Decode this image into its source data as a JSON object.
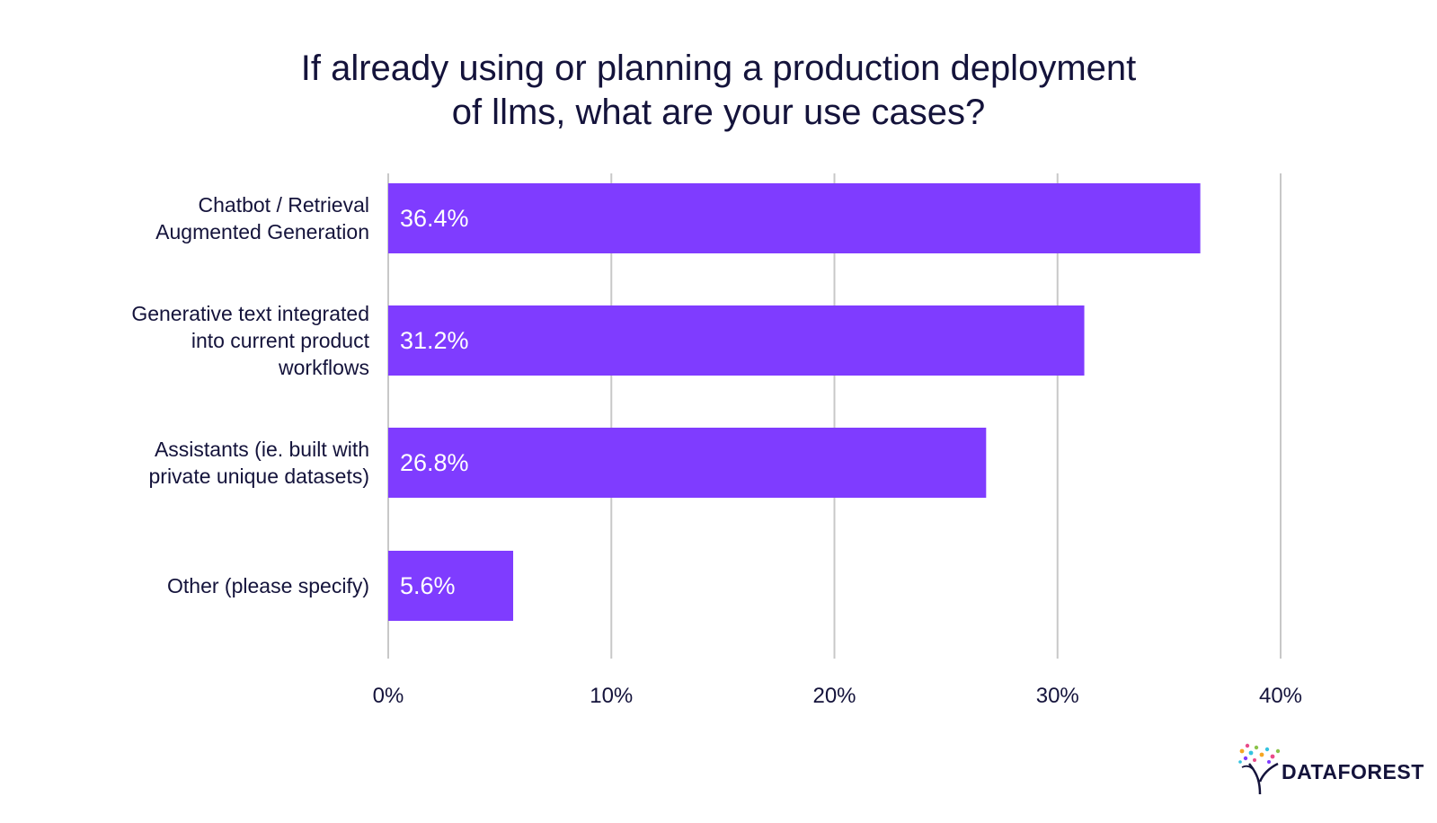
{
  "chart_data": {
    "type": "bar",
    "orientation": "horizontal",
    "title_lines": [
      "If already using or planning a production deployment",
      "of llms, what are your use cases?"
    ],
    "categories": [
      [
        "Chatbot / Retrieval",
        "Augmented Generation"
      ],
      [
        "Generative text integrated",
        "into current product",
        "workflows"
      ],
      [
        "Assistants (ie. built with",
        "private unique datasets)"
      ],
      [
        "Other (please specify)"
      ]
    ],
    "values": [
      36.4,
      31.2,
      26.8,
      5.6
    ],
    "value_labels": [
      "36.4%",
      "31.2%",
      "26.8%",
      "5.6%"
    ],
    "xlim": [
      0,
      40
    ],
    "xticks": [
      0,
      10,
      20,
      30,
      40
    ],
    "xtick_labels": [
      "0%",
      "10%",
      "20%",
      "30%",
      "40%"
    ],
    "grid": true,
    "bar_color": "#7f3cff",
    "text_color": "#14133b",
    "grid_color": "#c8c8c8"
  },
  "brand": {
    "logo_text": "DATAFOREST"
  }
}
